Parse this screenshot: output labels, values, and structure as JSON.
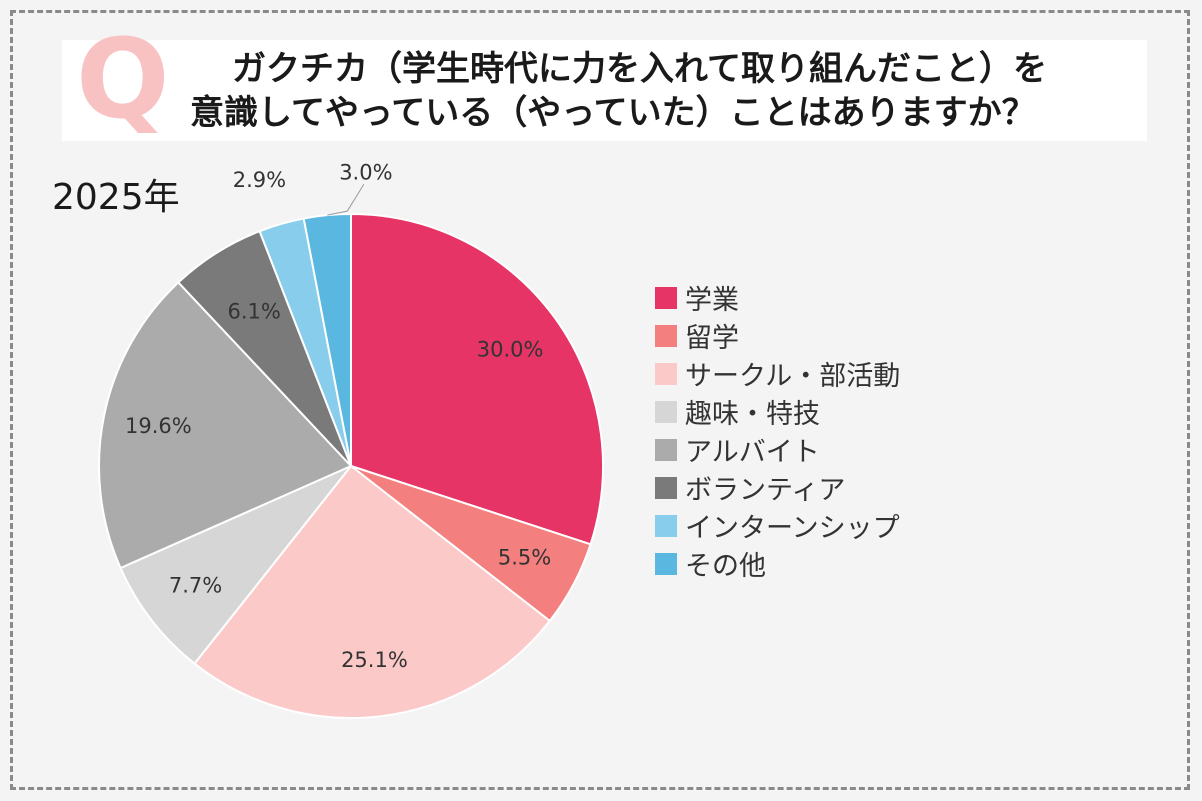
{
  "title": {
    "q_mark": "Q",
    "line1": "ガクチカ（学生時代に力を入れて取り組んだこと）を",
    "line2": "意識してやっている（やっていた）ことはありますか？"
  },
  "chart_data": {
    "type": "pie",
    "title": "2025年",
    "legend_position": "right",
    "slices": [
      {
        "label": "学業",
        "value": 30.0,
        "value_label": "30.0%",
        "color": "#e53465"
      },
      {
        "label": "留学",
        "value": 5.5,
        "value_label": "5.5%",
        "color": "#f37f7f"
      },
      {
        "label": "サークル・部活動",
        "value": 25.1,
        "value_label": "25.1%",
        "color": "#fcc9c9"
      },
      {
        "label": "趣味・特技",
        "value": 7.7,
        "value_label": "7.7%",
        "color": "#d6d6d6"
      },
      {
        "label": "アルバイト",
        "value": 19.6,
        "value_label": "19.6%",
        "color": "#ababab"
      },
      {
        "label": "ボランティア",
        "value": 6.1,
        "value_label": "6.1%",
        "color": "#7a7a7a"
      },
      {
        "label": "インターンシップ",
        "value": 2.9,
        "value_label": "2.9%",
        "color": "#88cdec"
      },
      {
        "label": "その他",
        "value": 3.0,
        "value_label": "3.0%",
        "color": "#5ab7e0"
      }
    ]
  }
}
